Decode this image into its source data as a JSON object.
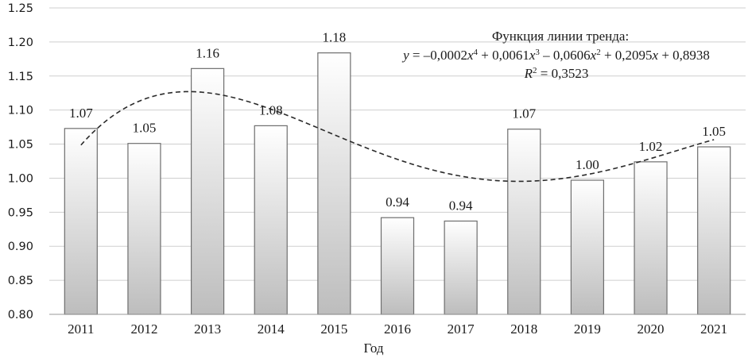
{
  "chart_data": {
    "type": "bar",
    "categories": [
      "2011",
      "2012",
      "2013",
      "2014",
      "2015",
      "2016",
      "2017",
      "2018",
      "2019",
      "2020",
      "2021"
    ],
    "values": [
      1.07,
      1.05,
      1.16,
      1.08,
      1.18,
      0.94,
      0.94,
      1.07,
      1.0,
      1.02,
      1.05
    ],
    "data_labels": [
      "1.07",
      "1.05",
      "1.16",
      "1.08",
      "1.18",
      "0.94",
      "0.94",
      "1.07",
      "1.00",
      "1.02",
      "1.05"
    ],
    "bar_values_exact": [
      1.073,
      1.051,
      1.161,
      1.077,
      1.184,
      0.942,
      0.937,
      1.072,
      0.997,
      1.024,
      1.046
    ],
    "xlabel": "Год",
    "ylabel": "",
    "ylim": [
      0.8,
      1.25
    ],
    "yticks": [
      "0.80",
      "0.85",
      "0.90",
      "0.95",
      "1.00",
      "1.05",
      "1.10",
      "1.15",
      "1.20",
      "1.25"
    ],
    "grid": true,
    "trendline": {
      "type": "polynomial",
      "order": 4,
      "coefficients": [
        -0.0002,
        0.0061,
        -0.0606,
        0.2095,
        0.8938
      ],
      "title": "Функция линии тренда:",
      "r2": "0,3523"
    },
    "colors": {
      "bar_top": "#ffffff",
      "bar_bottom": "#bdbdbd",
      "bar_edge": "#6e6e6e",
      "trend": "#2a2a2a"
    }
  }
}
